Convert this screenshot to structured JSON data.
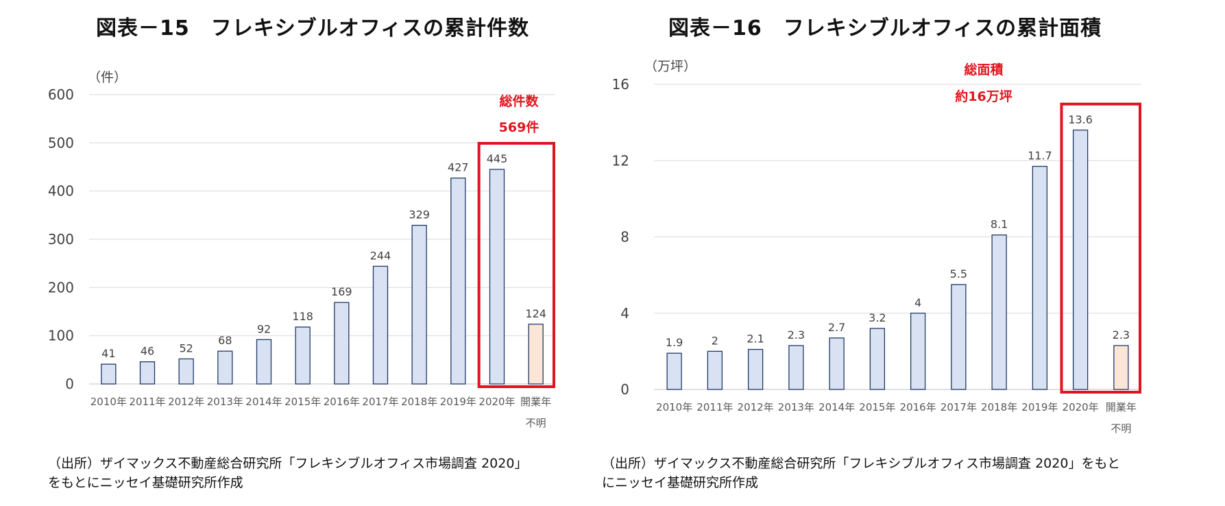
{
  "charts": [
    {
      "title": "図表－15　フレキシブルオフィスの累計件数",
      "unit": "（件）",
      "highlight": {
        "line1": "総件数",
        "line2": "569件"
      },
      "source": [
        "（出所）ザイマックス不動産総合研究所「フレキシブルオフィス市場調査 2020」",
        "をもとにニッセイ基礎研究所作成"
      ]
    },
    {
      "title": "図表－16　フレキシブルオフィスの累計面積",
      "unit": "（万坪）",
      "highlight": {
        "line1": "総面積",
        "line2": "約16万坪"
      },
      "source": [
        "（出所）ザイマックス不動産総合研究所「フレキシブルオフィス市場調査 2020」をもと",
        "にニッセイ基礎研究所作成"
      ]
    }
  ],
  "chart_data": [
    {
      "type": "bar",
      "title": "図表－15　フレキシブルオフィスの累計件数",
      "ylabel": "（件）",
      "categories": [
        "2010年",
        "2011年",
        "2012年",
        "2013年",
        "2014年",
        "2015年",
        "2016年",
        "2017年",
        "2018年",
        "2019年",
        "2020年",
        "開業年不明"
      ],
      "values": [
        41,
        46,
        52,
        68,
        92,
        118,
        169,
        244,
        329,
        427,
        445,
        124
      ],
      "labels": [
        "41",
        "46",
        "52",
        "68",
        "92",
        "118",
        "169",
        "244",
        "329",
        "427",
        "445",
        "124"
      ],
      "yticks": [
        0,
        100,
        200,
        300,
        400,
        500,
        600
      ],
      "ylim": [
        0,
        600
      ],
      "grid": true,
      "colors": {
        "bar": "#d9e2f3",
        "bar_stroke": "#1f3864",
        "unknown_bar": "#fbe5d6",
        "highlight": "#e0141e"
      }
    },
    {
      "type": "bar",
      "title": "図表－16　フレキシブルオフィスの累計面積",
      "ylabel": "（万坪）",
      "categories": [
        "2010年",
        "2011年",
        "2012年",
        "2013年",
        "2014年",
        "2015年",
        "2016年",
        "2017年",
        "2018年",
        "2019年",
        "2020年",
        "開業年不明"
      ],
      "values": [
        1.9,
        2,
        2.1,
        2.3,
        2.7,
        3.2,
        4,
        5.5,
        8.1,
        11.7,
        13.6,
        2.3
      ],
      "labels": [
        "1.9",
        "2",
        "2.1",
        "2.3",
        "2.7",
        "3.2",
        "4",
        "5.5",
        "8.1",
        "11.7",
        "13.6",
        "2.3"
      ],
      "yticks": [
        0,
        4,
        8,
        12,
        16
      ],
      "ylim": [
        0,
        16
      ],
      "grid": true,
      "colors": {
        "bar": "#d9e2f3",
        "bar_stroke": "#1f3864",
        "unknown_bar": "#fbe5d6",
        "highlight": "#e0141e"
      }
    }
  ]
}
